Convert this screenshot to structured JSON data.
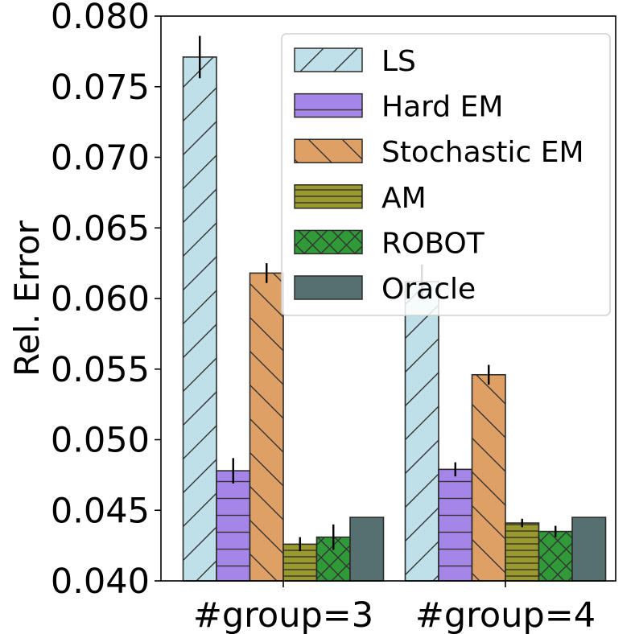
{
  "chart_data": {
    "type": "bar",
    "title": "",
    "xlabel": "",
    "ylabel": "Rel. Error",
    "ylim": [
      0.04,
      0.08
    ],
    "yticks": [
      "0.040",
      "0.045",
      "0.050",
      "0.055",
      "0.060",
      "0.065",
      "0.070",
      "0.075",
      "0.080"
    ],
    "categories": [
      "#group=3",
      "#group=4"
    ],
    "legend_position": "top-right",
    "series": [
      {
        "name": "LS",
        "values": [
          0.0771,
          0.0612
        ],
        "errors": [
          0.0015,
          0.0012
        ],
        "color": "#bfe0e8",
        "hatch": "diag-up"
      },
      {
        "name": "Hard EM",
        "values": [
          0.0478,
          0.0479
        ],
        "errors": [
          0.0009,
          0.0005
        ],
        "color": "#a585e8",
        "hatch": "horizontal"
      },
      {
        "name": "Stochastic EM",
        "values": [
          0.0618,
          0.0546
        ],
        "errors": [
          0.0007,
          0.0007
        ],
        "color": "#dea065",
        "hatch": "diag-down"
      },
      {
        "name": "AM",
        "values": [
          0.0426,
          0.0441
        ],
        "errors": [
          0.0005,
          0.0003
        ],
        "color": "#9a9a2c",
        "hatch": "horizontal-dense"
      },
      {
        "name": "ROBOT",
        "values": [
          0.0431,
          0.0435
        ],
        "errors": [
          0.0009,
          0.0004
        ],
        "color": "#2f9a37",
        "hatch": "cross"
      },
      {
        "name": "Oracle",
        "values": [
          0.0445,
          0.0445
        ],
        "errors": [
          0,
          0
        ],
        "color": "#566f6f",
        "hatch": "none"
      }
    ]
  }
}
